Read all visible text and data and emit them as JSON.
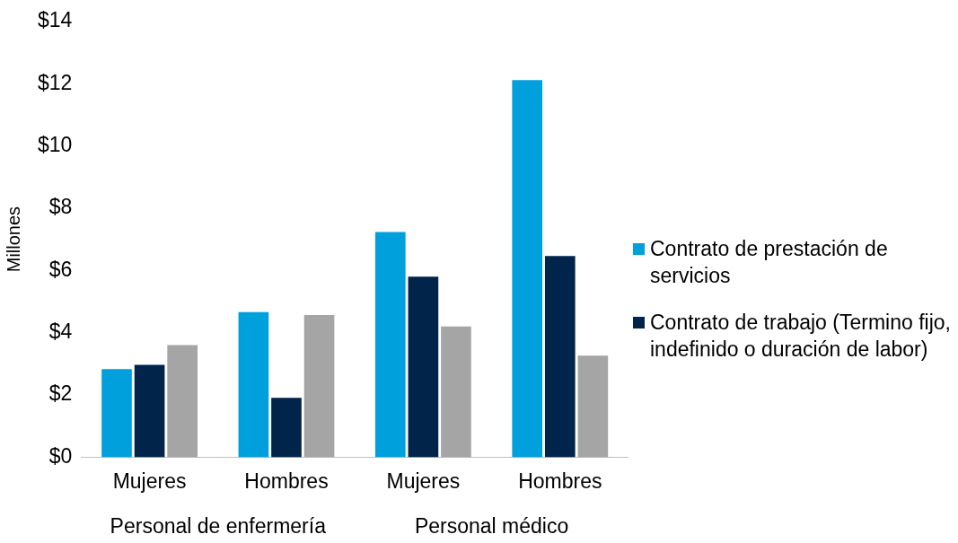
{
  "chart_data": {
    "type": "bar",
    "ylabel": "Millones",
    "categories": [
      "Mujeres",
      "Hombres",
      "Mujeres",
      "Hombres"
    ],
    "series": [
      {
        "name": "Contrato de prestación de servicios",
        "color": "#00a0dc",
        "values": [
          2.83,
          4.66,
          7.23,
          12.11
        ]
      },
      {
        "name": "Contrato de trabajo (Termino fijo, indefinido o duración de labor)",
        "color": "#00244a",
        "values": [
          2.97,
          1.91,
          5.8,
          6.46
        ]
      },
      {
        "color": "#a5a5a5",
        "values": [
          3.6,
          4.57,
          4.2,
          3.26
        ]
      }
    ],
    "ylim": [
      0,
      14
    ],
    "yticks": [
      {
        "value": 0,
        "label": "$0"
      },
      {
        "value": 2,
        "label": "$2"
      },
      {
        "value": 4,
        "label": "$4"
      },
      {
        "value": 6,
        "label": "$6"
      },
      {
        "value": 8,
        "label": "$8"
      },
      {
        "value": 10,
        "label": "$10"
      },
      {
        "value": 12,
        "label": "$12"
      },
      {
        "value": 14,
        "label": "$14"
      }
    ],
    "annotations": [
      "Personal de enfermería",
      "Personal médico"
    ],
    "grid": false,
    "legend": "right"
  }
}
